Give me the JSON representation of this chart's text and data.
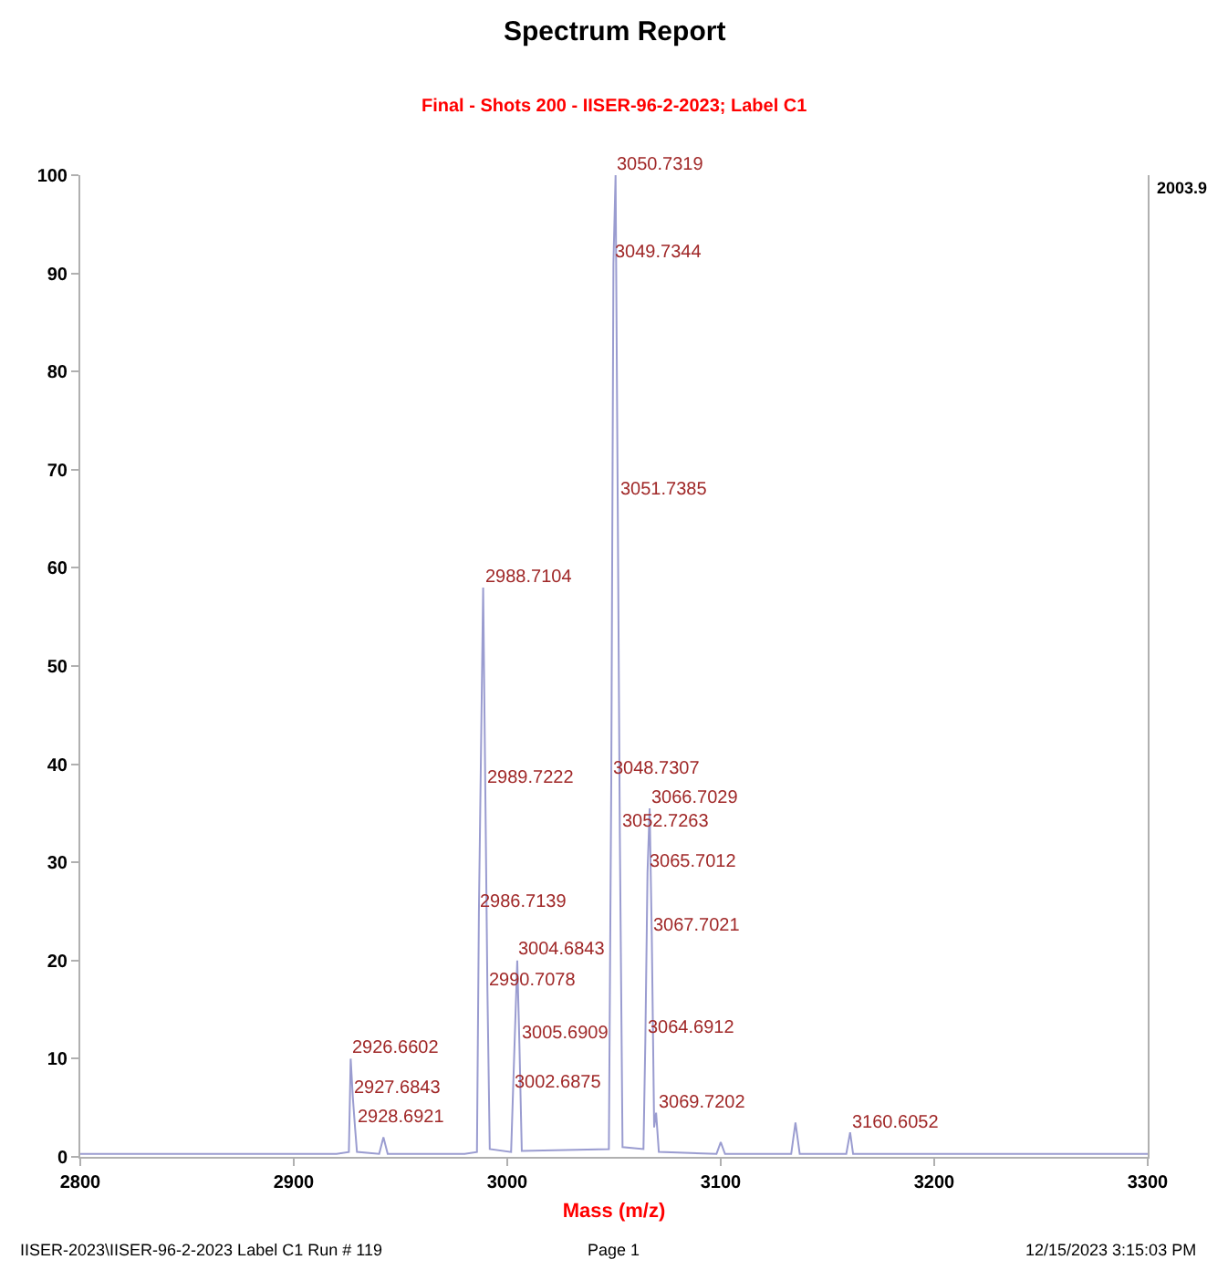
{
  "chart_data": {
    "type": "line",
    "title": "Spectrum Report",
    "subtitle": "Final - Shots 200 - IISER-96-2-2023; Label C1",
    "xlabel": "Mass (m/z)",
    "x": [
      2800,
      2860,
      2920,
      2925.8,
      2926.6602,
      2927.6843,
      2928.6921,
      2929.6,
      2940,
      2942,
      2944,
      2980,
      2985.8,
      2986.7139,
      2988.7104,
      2989.7222,
      2990.7078,
      2991.8,
      3001.8,
      3002.6875,
      3004.6843,
      3005.6909,
      3006.8,
      3047.6,
      3048.7307,
      3049.7344,
      3050.7319,
      3051.7385,
      3052.7263,
      3054,
      3063.8,
      3064.6912,
      3065.7012,
      3066.7029,
      3067.7021,
      3068.8,
      3069.7202,
      3071,
      3098,
      3100,
      3102,
      3133,
      3135,
      3137,
      3158.8,
      3160.6052,
      3162,
      3300
    ],
    "series": [
      {
        "color": "#9a9cd0",
        "values": [
          0.3,
          0.3,
          0.3,
          0.5,
          10,
          6,
          3,
          0.5,
          0.3,
          2,
          0.3,
          0.3,
          0.5,
          25,
          58,
          37.5,
          17,
          0.8,
          0.5,
          6.5,
          20,
          11.5,
          0.6,
          0.8,
          38.5,
          91,
          100,
          67,
          33,
          1,
          0.8,
          12,
          29,
          35.5,
          22.5,
          3,
          4.5,
          0.5,
          0.3,
          1.5,
          0.3,
          0.3,
          3.5,
          0.3,
          0.3,
          2.5,
          0.3,
          0.3
        ]
      }
    ],
    "xlim": [
      2800,
      3300
    ],
    "xticks": [
      2800,
      2900,
      3000,
      3100,
      3200,
      3300
    ],
    "ylim": [
      0,
      100
    ],
    "yticks": [
      0,
      10,
      20,
      30,
      40,
      50,
      60,
      70,
      80,
      90,
      100
    ],
    "marker": "none",
    "line_style": "solid",
    "annotations": [
      {
        "text": "3050.7319",
        "x": 3050.7319,
        "y": 100
      },
      {
        "text": "3049.7344",
        "x": 3049.7344,
        "y": 91
      },
      {
        "text": "3051.7385",
        "x": 3051.7385,
        "y": 67
      },
      {
        "text": "2988.7104",
        "x": 2988.7104,
        "y": 58
      },
      {
        "text": "2989.7222",
        "x": 2989.7222,
        "y": 37.5
      },
      {
        "text": "3048.7307",
        "x": 3048.7307,
        "y": 38.5
      },
      {
        "text": "3066.7029",
        "x": 3066.7029,
        "y": 35.5
      },
      {
        "text": "3052.7263",
        "x": 3052.7263,
        "y": 33
      },
      {
        "text": "3065.7012",
        "x": 3065.7012,
        "y": 29
      },
      {
        "text": "2986.7139",
        "x": 2986.7139,
        "y": 25
      },
      {
        "text": "3004.6843",
        "x": 3004.6843,
        "y": 20
      },
      {
        "text": "3067.7021",
        "x": 3067.7021,
        "y": 22.5
      },
      {
        "text": "2990.7078",
        "x": 2990.7078,
        "y": 17
      },
      {
        "text": "3005.6909",
        "x": 3005.6909,
        "y": 11.5
      },
      {
        "text": "3064.6912",
        "x": 3064.6912,
        "y": 12
      },
      {
        "text": "2926.6602",
        "x": 2926.6602,
        "y": 10
      },
      {
        "text": "3002.6875",
        "x": 3002.6875,
        "y": 6.5
      },
      {
        "text": "2927.6843",
        "x": 2927.6843,
        "y": 6
      },
      {
        "text": "2928.6921",
        "x": 2928.6921,
        "y": 3
      },
      {
        "text": "3069.7202",
        "x": 3069.7202,
        "y": 4.5
      },
      {
        "text": "3160.6052",
        "x": 3160.6052,
        "y": 2.5
      },
      "2003.9",
      "IISER-2023\\IISER-96-2-2023 Label C1 Run # 119",
      "Page 1",
      "12/15/2023 3:15:03 PM"
    ]
  }
}
